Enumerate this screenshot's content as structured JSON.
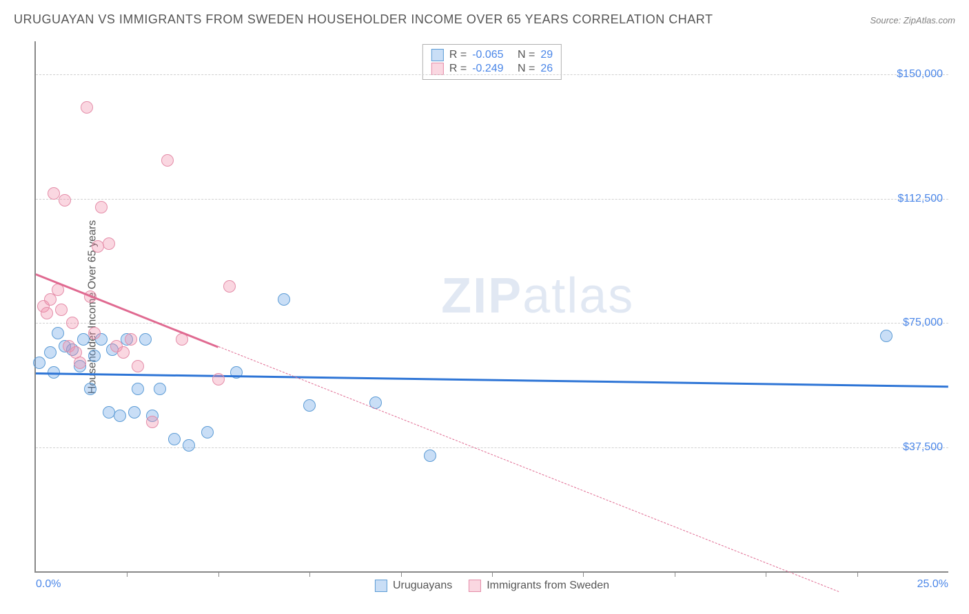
{
  "title": "URUGUAYAN VS IMMIGRANTS FROM SWEDEN HOUSEHOLDER INCOME OVER 65 YEARS CORRELATION CHART",
  "source": "Source: ZipAtlas.com",
  "y_axis_label": "Householder Income Over 65 years",
  "watermark_bold": "ZIP",
  "watermark_light": "atlas",
  "chart": {
    "type": "scatter",
    "xlim": [
      0,
      25
    ],
    "ylim": [
      0,
      160000
    ],
    "x_min_label": "0.0%",
    "x_max_label": "25.0%",
    "x_ticks": [
      2.5,
      5,
      7.5,
      10,
      12.5,
      15,
      17.5,
      20,
      22.5
    ],
    "y_gridlines": [
      37500,
      75000,
      112500,
      150000
    ],
    "y_tick_labels": [
      "$37,500",
      "$75,000",
      "$112,500",
      "$150,000"
    ],
    "background_color": "#ffffff",
    "grid_color": "#d0d0d0",
    "axis_color": "#888888",
    "tick_label_color": "#4a86e8",
    "series": [
      {
        "name": "Uruguayans",
        "fill_color": "rgba(100, 160, 230, 0.35)",
        "stroke_color": "#5b9bd5",
        "marker_radius": 9,
        "R": "-0.065",
        "N": "29",
        "trend": {
          "x1": 0,
          "y1": 60000,
          "x2": 25,
          "y2": 56000,
          "color": "#2e75d6",
          "width": 2.5,
          "dash_after_x": 25
        },
        "points": [
          [
            0.1,
            63000
          ],
          [
            0.4,
            66000
          ],
          [
            0.5,
            60000
          ],
          [
            0.6,
            72000
          ],
          [
            0.8,
            68000
          ],
          [
            1.0,
            67000
          ],
          [
            1.2,
            62000
          ],
          [
            1.3,
            70000
          ],
          [
            1.6,
            65000
          ],
          [
            1.5,
            55000
          ],
          [
            1.8,
            70000
          ],
          [
            2.0,
            48000
          ],
          [
            2.1,
            67000
          ],
          [
            2.3,
            47000
          ],
          [
            2.5,
            70000
          ],
          [
            2.8,
            55000
          ],
          [
            2.7,
            48000
          ],
          [
            3.0,
            70000
          ],
          [
            3.2,
            47000
          ],
          [
            3.4,
            55000
          ],
          [
            3.8,
            40000
          ],
          [
            4.2,
            38000
          ],
          [
            4.7,
            42000
          ],
          [
            5.5,
            60000
          ],
          [
            6.8,
            82000
          ],
          [
            7.5,
            50000
          ],
          [
            9.3,
            51000
          ],
          [
            10.8,
            35000
          ],
          [
            23.3,
            71000
          ]
        ]
      },
      {
        "name": "Immigrants from Sweden",
        "fill_color": "rgba(240, 140, 170, 0.35)",
        "stroke_color": "#e48ca8",
        "marker_radius": 9,
        "R": "-0.249",
        "N": "26",
        "trend": {
          "x1": 0,
          "y1": 90000,
          "x2": 5,
          "y2": 68000,
          "color": "#e06a91",
          "width": 2.5,
          "dash_after_x": 5,
          "dash_x2": 22,
          "dash_y2": -6000
        },
        "points": [
          [
            0.2,
            80000
          ],
          [
            0.3,
            78000
          ],
          [
            0.4,
            82000
          ],
          [
            0.5,
            114000
          ],
          [
            0.6,
            85000
          ],
          [
            0.7,
            79000
          ],
          [
            0.8,
            112000
          ],
          [
            0.9,
            68000
          ],
          [
            1.0,
            75000
          ],
          [
            1.1,
            66000
          ],
          [
            1.2,
            63000
          ],
          [
            1.4,
            140000
          ],
          [
            1.5,
            83000
          ],
          [
            1.6,
            72000
          ],
          [
            1.7,
            98000
          ],
          [
            1.8,
            110000
          ],
          [
            2.0,
            99000
          ],
          [
            2.2,
            68000
          ],
          [
            2.4,
            66000
          ],
          [
            2.6,
            70000
          ],
          [
            2.8,
            62000
          ],
          [
            3.2,
            45000
          ],
          [
            3.6,
            124000
          ],
          [
            4.0,
            70000
          ],
          [
            5.0,
            58000
          ],
          [
            5.3,
            86000
          ]
        ]
      }
    ]
  },
  "legend_top": {
    "R_label": "R =",
    "N_label": "N ="
  },
  "legend_bottom": {
    "series1": "Uruguayans",
    "series2": "Immigrants from Sweden"
  }
}
